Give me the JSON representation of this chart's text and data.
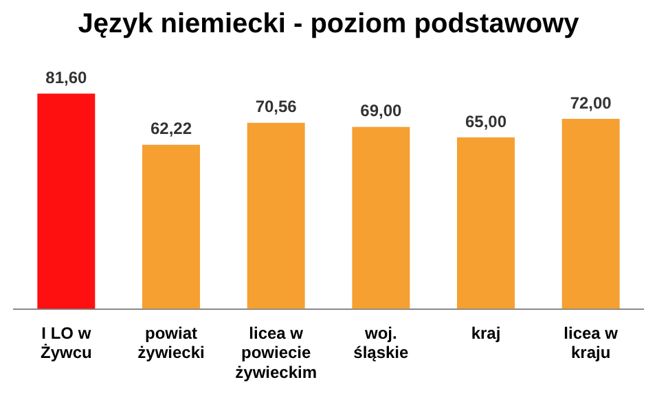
{
  "chart_data": {
    "type": "bar",
    "title": "Język niemiecki - poziom podstawowy",
    "categories": [
      "I LO w Żywcu",
      "powiat żywiecki",
      "licea w powiecie żywieckim",
      "woj. śląskie",
      "kraj",
      "licea w kraju"
    ],
    "values": [
      81.6,
      62.22,
      70.56,
      69.0,
      65.0,
      72.0
    ],
    "colors": [
      "#ff1010",
      "#f5a030",
      "#f5a030",
      "#f5a030",
      "#f5a030",
      "#f5a030"
    ],
    "value_labels": [
      "81,60",
      "62,22",
      "70,56",
      "69,00",
      "65,00",
      "72,00"
    ],
    "tick_labels": "x",
    "grid": false,
    "legend": false
  }
}
